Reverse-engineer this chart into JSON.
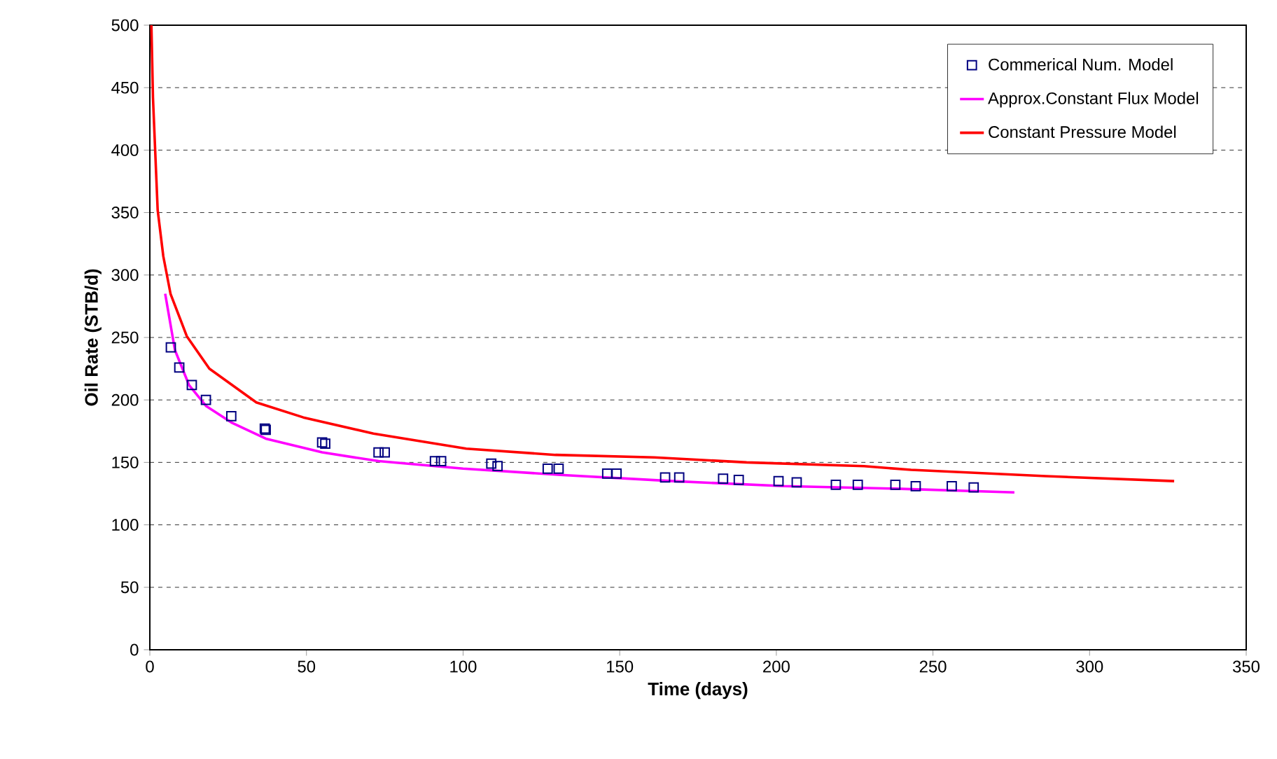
{
  "chart_data": {
    "type": "line",
    "xlabel": "Time (days)",
    "ylabel": "Oil Rate (STB/d)",
    "xlim": [
      0,
      350
    ],
    "xticks": [
      0,
      50,
      100,
      150,
      200,
      250,
      300,
      350
    ],
    "ylim": [
      0,
      500
    ],
    "yticks": [
      0,
      50,
      100,
      150,
      200,
      250,
      300,
      350,
      400,
      450,
      500
    ],
    "grid": "y",
    "legend": "top right",
    "series": [
      {
        "name": "Commerical Num. Model",
        "type": "scatter",
        "marker": "square",
        "color": "#000080",
        "x": [
          6.7,
          9.4,
          13.4,
          17.9,
          26,
          36.7,
          37,
          55,
          56,
          73,
          75,
          91,
          93,
          109,
          111,
          127,
          130.5,
          146,
          149,
          164.5,
          169,
          183,
          188,
          200.7,
          206.5,
          219,
          226,
          238,
          244.5,
          256,
          263
        ],
        "values": [
          242,
          226,
          212,
          200,
          187,
          177,
          176,
          166,
          165,
          158,
          158,
          151,
          151,
          149,
          147,
          145,
          145,
          141,
          141,
          138,
          138,
          137,
          136,
          135,
          134,
          132,
          132,
          132,
          131,
          131,
          130
        ]
      },
      {
        "name": "Approx.Constant Flux  Model",
        "type": "line",
        "color": "#ff00ff",
        "x": [
          4.9,
          8,
          12.5,
          18,
          26,
          37,
          55,
          73,
          100,
          131,
          167,
          202.5,
          238,
          276
        ],
        "values": [
          285,
          240,
          212,
          195,
          182,
          169,
          158,
          151,
          145,
          140,
          135,
          131,
          129,
          126
        ]
      },
      {
        "name": "Constant Pressure Model",
        "type": "line",
        "color": "#ff0000",
        "x": [
          0.5,
          1,
          2.5,
          4.3,
          6.6,
          11.8,
          19,
          34,
          49,
          71.4,
          101,
          129.5,
          161,
          190.5,
          228,
          243,
          286,
          327
        ],
        "values": [
          500,
          442,
          352,
          315,
          285,
          251,
          225,
          198,
          186,
          173,
          161,
          156,
          154,
          150,
          147,
          144,
          139,
          135
        ]
      }
    ]
  }
}
